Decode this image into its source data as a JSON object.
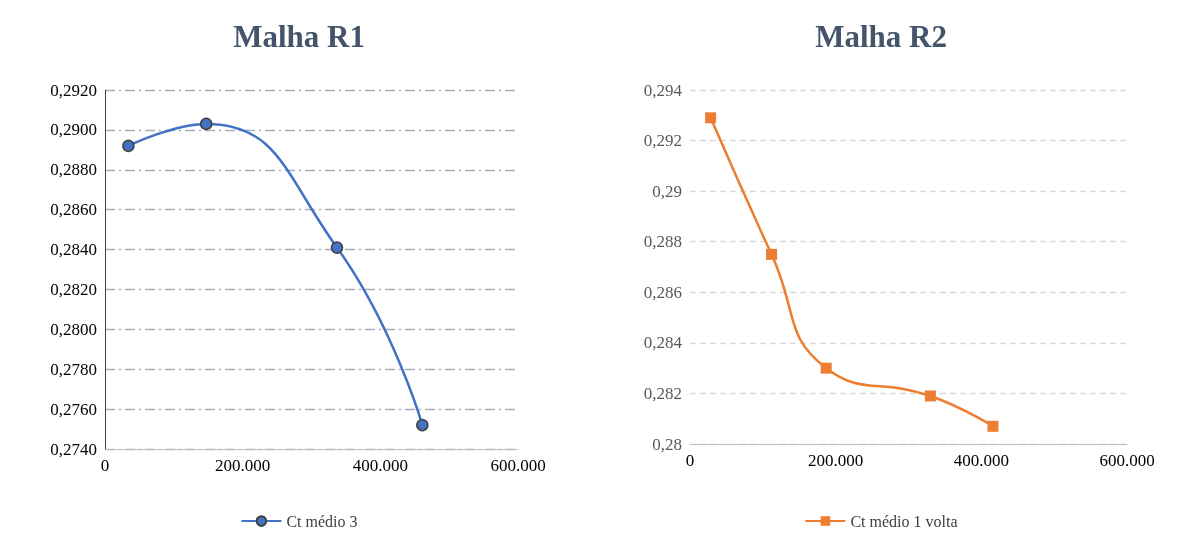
{
  "chart_data": [
    {
      "type": "line",
      "title": "Malha R1",
      "x": [
        34000,
        147000,
        337000,
        461000
      ],
      "series": [
        {
          "name": "Ct médio 3",
          "color": "#4472c4",
          "values": [
            0.2892,
            0.2903,
            0.2841,
            0.2752
          ]
        }
      ],
      "xlim": [
        0,
        600000
      ],
      "xticks": [
        {
          "value": 0,
          "label": "0"
        },
        {
          "value": 200000,
          "label": "200.000"
        },
        {
          "value": 400000,
          "label": "400.000"
        },
        {
          "value": 600000,
          "label": "600.000"
        }
      ],
      "ylim": [
        0.274,
        0.292
      ],
      "yticks": [
        {
          "value": 0.274,
          "label": "0,2740"
        },
        {
          "value": 0.276,
          "label": "0,2760"
        },
        {
          "value": 0.278,
          "label": "0,2780"
        },
        {
          "value": 0.28,
          "label": "0,2800"
        },
        {
          "value": 0.282,
          "label": "0,2820"
        },
        {
          "value": 0.284,
          "label": "0,2840"
        },
        {
          "value": 0.286,
          "label": "0,2860"
        },
        {
          "value": 0.288,
          "label": "0,2880"
        },
        {
          "value": 0.29,
          "label": "0,2900"
        },
        {
          "value": 0.292,
          "label": "0,2920"
        }
      ],
      "grid": "y",
      "legend": "bottom",
      "marker": "circle",
      "line_style": "solid"
    },
    {
      "type": "line",
      "title": "Malha R2",
      "x": [
        28300,
        112000,
        187000,
        330000,
        416000
      ],
      "series": [
        {
          "name": "Ct médio 1 volta",
          "color": "#ed7d31",
          "values": [
            0.2929,
            0.2875,
            0.283,
            0.2819,
            0.2807
          ]
        }
      ],
      "xlim": [
        0,
        600000
      ],
      "xticks": [
        {
          "value": 0,
          "label": "0"
        },
        {
          "value": 200000,
          "label": "200.000"
        },
        {
          "value": 400000,
          "label": "400.000"
        },
        {
          "value": 600000,
          "label": "600.000"
        }
      ],
      "ylim": [
        0.28,
        0.294
      ],
      "yticks": [
        {
          "value": 0.28,
          "label": "0,28"
        },
        {
          "value": 0.282,
          "label": "0,282"
        },
        {
          "value": 0.284,
          "label": "0,284"
        },
        {
          "value": 0.286,
          "label": "0,286"
        },
        {
          "value": 0.288,
          "label": "0,288"
        },
        {
          "value": 0.29,
          "label": "0,29"
        },
        {
          "value": 0.292,
          "label": "0,292"
        },
        {
          "value": 0.294,
          "label": "0,294"
        }
      ],
      "grid": "y",
      "legend": "bottom",
      "marker": "square",
      "line_style": "solid"
    }
  ]
}
